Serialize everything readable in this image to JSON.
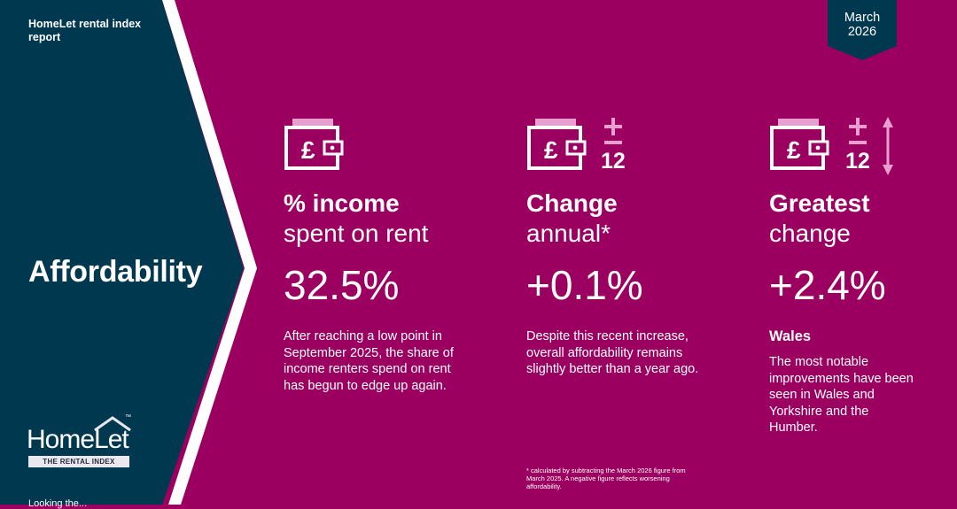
{
  "report": {
    "title": "HomeLet rental index report"
  },
  "date_badge": {
    "line1": "March",
    "line2": "2026"
  },
  "section": {
    "title": "Affordability"
  },
  "logo": {
    "word": "HomeLet",
    "tm": "™",
    "tagline": "THE RENTAL INDEX"
  },
  "cut_text": "Looking the...",
  "columns": [
    {
      "title": "% income",
      "subtitle": "spent on rent",
      "value": "32.5%",
      "description": "After reaching a low point in September 2025, the share of income renters spend on rent has begun to edge up again."
    },
    {
      "title": "Change",
      "subtitle": "annual*",
      "value": "+0.1%",
      "icon_number": "12",
      "description": "Despite this recent increase, overall affordability remains slightly better than a year ago."
    },
    {
      "title": "Greatest",
      "subtitle": "change",
      "value": "+2.4%",
      "icon_number": "12",
      "region": "Wales",
      "description": "The most notable improvements have been seen in Wales and Yorkshire and the Humber."
    }
  ],
  "footnote": "* calculated by subtracting the March 2026 figure from March 2025. A negative figure reflects worsening affordability.",
  "colors": {
    "background": "#9b0060",
    "navy": "#003850",
    "icon_accent": "#e79fd0"
  },
  "icons": {
    "wallet": "wallet-pound-icon",
    "plus_minus": "plus-minus-icon",
    "arrow": "up-down-arrow-icon"
  }
}
